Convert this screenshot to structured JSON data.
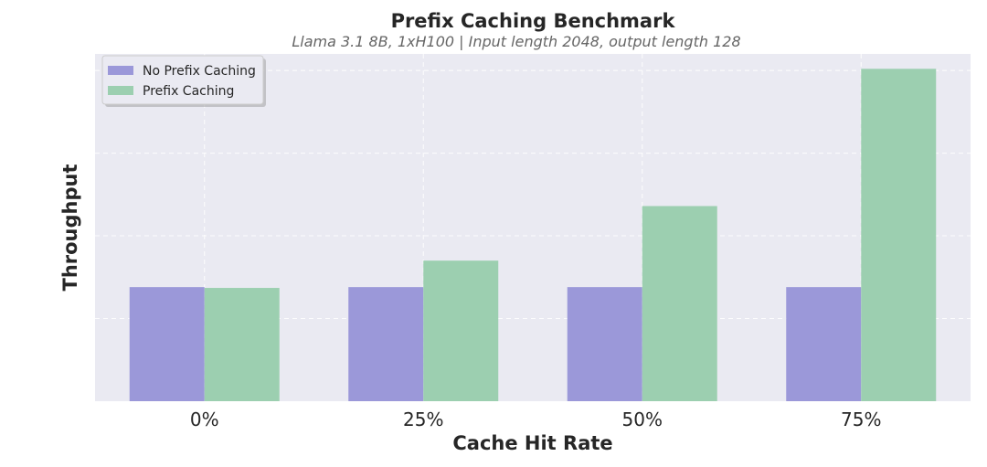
{
  "chart_data": {
    "type": "bar",
    "title": "Prefix Caching Benchmark",
    "subtitle": "Llama 3.1 8B, 1xH100 | Input length 2048, output length 128",
    "xlabel": "Cache Hit Rate",
    "ylabel": "Throughput",
    "categories": [
      "0%",
      "25%",
      "50%",
      "75%"
    ],
    "series": [
      {
        "name": "No Prefix Caching",
        "color": "#9b98d9",
        "values": [
          1.38,
          1.38,
          1.38,
          1.38
        ]
      },
      {
        "name": "Prefix Caching",
        "color": "#9ccfb0",
        "values": [
          1.37,
          1.7,
          2.36,
          4.02
        ]
      }
    ],
    "ylim": [
      0,
      4.2
    ],
    "y_tick_labels_shown": false,
    "grid": true,
    "legend_position": "top-left",
    "plot_background": "#eaeaf2"
  }
}
